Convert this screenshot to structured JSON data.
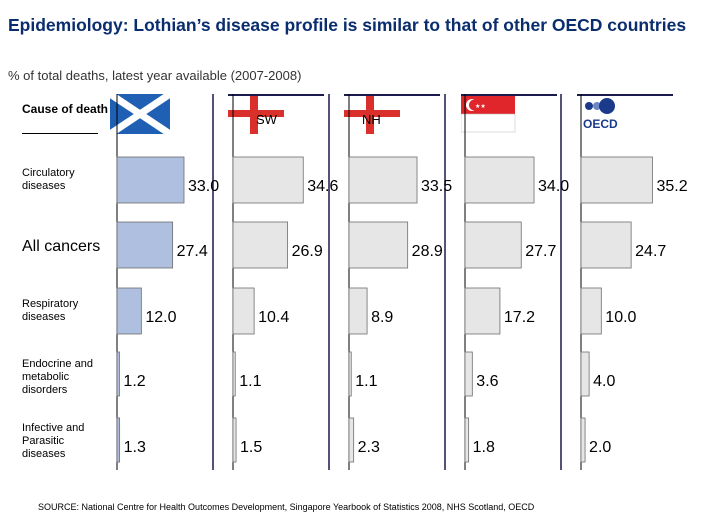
{
  "title": "Epidemiology: Lothian’s disease profile is similar to that of other OECD countries",
  "subtitle": "% of total deaths, latest year available (2007-2008)",
  "cause_header": "Cause of death",
  "source": "SOURCE: National Centre for Health Outcomes Development, Singapore Yearbook of Statistics 2008, NHS Scotland, OECD",
  "colors": {
    "lothian_bar": "#aebfdf",
    "other_bar": "#e6e6e6",
    "bar_border": "#6e6e6e",
    "scotland_flag": "#1f5fb4",
    "england_red": "#d9302b",
    "singapore_red": "#e0262b",
    "oecd_blue": "#1b3a8a"
  },
  "flags": [
    {
      "name": "Scotland",
      "label": ""
    },
    {
      "name": "SW",
      "label": "SW"
    },
    {
      "name": "NH",
      "label": "NH"
    },
    {
      "name": "Singapore",
      "label": ""
    },
    {
      "name": "OECD",
      "label": "OECD"
    }
  ],
  "chart_data": {
    "type": "bar",
    "orientation": "horizontal",
    "title": "Epidemiology: Lothian’s disease profile is similar to that of other OECD countries",
    "units": "% of total deaths",
    "categories": [
      "Circulatory diseases",
      "All cancers",
      "Respiratory diseases",
      "Endocrine and metabolic disorders",
      "Infective and Parasitic diseases"
    ],
    "series": [
      {
        "name": "Scotland",
        "values": [
          33.0,
          27.4,
          12.0,
          1.2,
          1.3
        ]
      },
      {
        "name": "SW",
        "values": [
          34.6,
          26.9,
          10.4,
          1.1,
          1.5
        ]
      },
      {
        "name": "NH",
        "values": [
          33.5,
          28.9,
          8.9,
          1.1,
          2.3
        ]
      },
      {
        "name": "Singapore",
        "values": [
          34.0,
          27.7,
          17.2,
          3.6,
          1.8
        ]
      },
      {
        "name": "OECD",
        "values": [
          35.2,
          24.7,
          10.0,
          4.0,
          2.0
        ]
      }
    ],
    "value_labels": [
      [
        "33.0",
        "27.4",
        "12.0",
        "1.2",
        "1.3"
      ],
      [
        "34.6",
        "26.9",
        "10.4",
        "1.1",
        "1.5"
      ],
      [
        "33.5",
        "28.9",
        "8.9",
        "1.1",
        "2.3"
      ],
      [
        "34.0",
        "27.7",
        "17.2",
        "3.6",
        "1.8"
      ],
      [
        "35.2",
        "24.7",
        "10.0",
        "4.0",
        "2.0"
      ]
    ],
    "xlim": [
      0,
      36
    ]
  }
}
